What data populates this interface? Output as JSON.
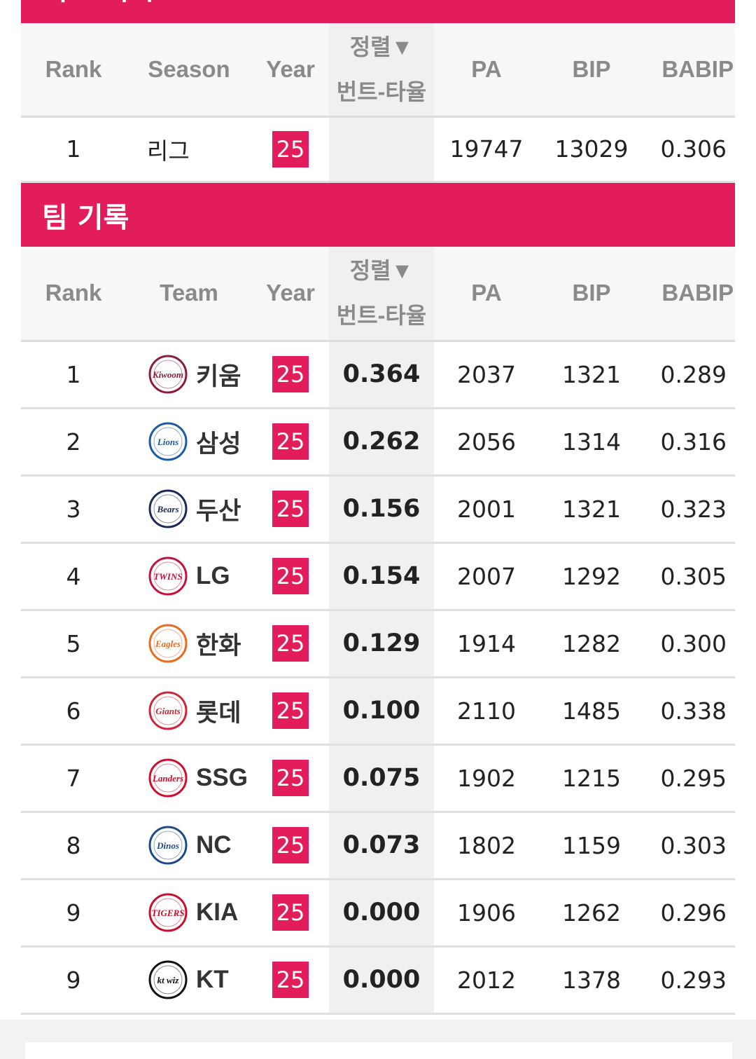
{
  "top_section": {
    "title": "리그 기록"
  },
  "team_section": {
    "title": "팀 기록"
  },
  "league_table": {
    "headers": {
      "rank": "Rank",
      "season": "Season",
      "year": "Year",
      "sort_line1": "정렬▼",
      "sort_line2": "번트-타율",
      "pa": "PA",
      "bip": "BIP",
      "babip": "BABIP"
    },
    "rows": [
      {
        "rank": "1",
        "name": "리그",
        "year": "25",
        "sort": "",
        "pa": "19747",
        "bip": "13029",
        "babip": "0.306"
      }
    ]
  },
  "team_table": {
    "headers": {
      "rank": "Rank",
      "team": "Team",
      "year": "Year",
      "sort_line1": "정렬▼",
      "sort_line2": "번트-타율",
      "pa": "PA",
      "bip": "BIP",
      "babip": "BABIP"
    },
    "rows": [
      {
        "rank": "1",
        "team": "키움",
        "logo": "kiwoom-heroes-logo",
        "logo_text": "Kiwoom",
        "logo_color": "#8b1d3a",
        "year": "25",
        "sort": "0.364",
        "pa": "2037",
        "bip": "1321",
        "babip": "0.289"
      },
      {
        "rank": "2",
        "team": "삼성",
        "logo": "samsung-lions-logo",
        "logo_text": "Lions",
        "logo_color": "#1a5aa6",
        "year": "25",
        "sort": "0.262",
        "pa": "2056",
        "bip": "1314",
        "babip": "0.316"
      },
      {
        "rank": "3",
        "team": "두산",
        "logo": "doosan-bears-logo",
        "logo_text": "Bears",
        "logo_color": "#1b2a5a",
        "year": "25",
        "sort": "0.156",
        "pa": "2001",
        "bip": "1321",
        "babip": "0.323"
      },
      {
        "rank": "4",
        "team": "LG",
        "logo": "lg-twins-logo",
        "logo_text": "TWINS",
        "logo_color": "#c4123e",
        "year": "25",
        "sort": "0.154",
        "pa": "2007",
        "bip": "1292",
        "babip": "0.305"
      },
      {
        "rank": "5",
        "team": "한화",
        "logo": "hanwha-eagles-logo",
        "logo_text": "Eagles",
        "logo_color": "#ea6a1f",
        "year": "25",
        "sort": "0.129",
        "pa": "1914",
        "bip": "1282",
        "babip": "0.300"
      },
      {
        "rank": "6",
        "team": "롯데",
        "logo": "lotte-giants-logo",
        "logo_text": "Giants",
        "logo_color": "#d0263a",
        "year": "25",
        "sort": "0.100",
        "pa": "2110",
        "bip": "1485",
        "babip": "0.338"
      },
      {
        "rank": "7",
        "team": "SSG",
        "logo": "ssg-landers-logo",
        "logo_text": "Landers",
        "logo_color": "#ce0e2d",
        "year": "25",
        "sort": "0.075",
        "pa": "1902",
        "bip": "1215",
        "babip": "0.295"
      },
      {
        "rank": "8",
        "team": "NC",
        "logo": "nc-dinos-logo",
        "logo_text": "Dinos",
        "logo_color": "#1f4a8c",
        "year": "25",
        "sort": "0.073",
        "pa": "1802",
        "bip": "1159",
        "babip": "0.303"
      },
      {
        "rank": "9",
        "team": "KIA",
        "logo": "kia-tigers-logo",
        "logo_text": "TIGERS",
        "logo_color": "#c8102e",
        "year": "25",
        "sort": "0.000",
        "pa": "1906",
        "bip": "1262",
        "babip": "0.296"
      },
      {
        "rank": "9",
        "team": "KT",
        "logo": "kt-wiz-logo",
        "logo_text": "kt wiz",
        "logo_color": "#111111",
        "year": "25",
        "sort": "0.000",
        "pa": "2012",
        "bip": "1378",
        "babip": "0.293"
      }
    ]
  },
  "colors": {
    "accent": "#e31c5b",
    "header_text": "#8a8a8a",
    "sort_col_bg": "#f0f0f0"
  }
}
